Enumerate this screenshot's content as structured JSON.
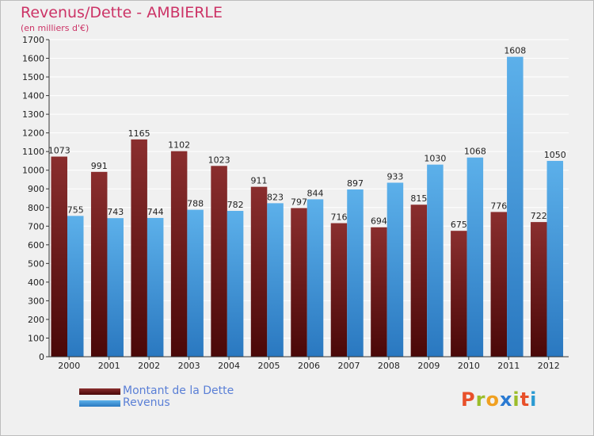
{
  "title": "Revenus/Dette - AMBIERLE",
  "subtitle": "(en milliers d'€)",
  "logo": {
    "letters": [
      {
        "ch": "P",
        "color": "#e8502a"
      },
      {
        "ch": "r",
        "color": "#9bbd2a"
      },
      {
        "ch": "o",
        "color": "#f0a020"
      },
      {
        "ch": "x",
        "color": "#2a7ad2"
      },
      {
        "ch": "i",
        "color": "#9bbd2a"
      },
      {
        "ch": "t",
        "color": "#e8502a"
      },
      {
        "ch": "i",
        "color": "#2a9ad2"
      }
    ]
  },
  "colors": {
    "dette": "#7a1f1f",
    "revenus": "#4aa0e0",
    "grid": "#ffffff",
    "axis": "#333333"
  },
  "chart_data": {
    "type": "bar",
    "title": "Revenus/Dette - AMBIERLE",
    "subtitle": "(en milliers d'€)",
    "categories": [
      "2000",
      "2001",
      "2002",
      "2003",
      "2004",
      "2005",
      "2006",
      "2007",
      "2008",
      "2009",
      "2010",
      "2011",
      "2012"
    ],
    "series": [
      {
        "name": "Montant de la Dette",
        "values": [
          1073,
          991,
          1165,
          1102,
          1023,
          911,
          797,
          716,
          694,
          815,
          675,
          776,
          722
        ]
      },
      {
        "name": "Revenus",
        "values": [
          755,
          743,
          744,
          788,
          782,
          823,
          844,
          897,
          933,
          1030,
          1068,
          1608,
          1050
        ]
      }
    ],
    "ylim": [
      0,
      1700
    ],
    "yticks": [
      0,
      100,
      200,
      300,
      400,
      500,
      600,
      700,
      800,
      900,
      1000,
      1100,
      1200,
      1300,
      1400,
      1500,
      1600,
      1700
    ],
    "grid": true,
    "legend_position": "bottom-left"
  }
}
